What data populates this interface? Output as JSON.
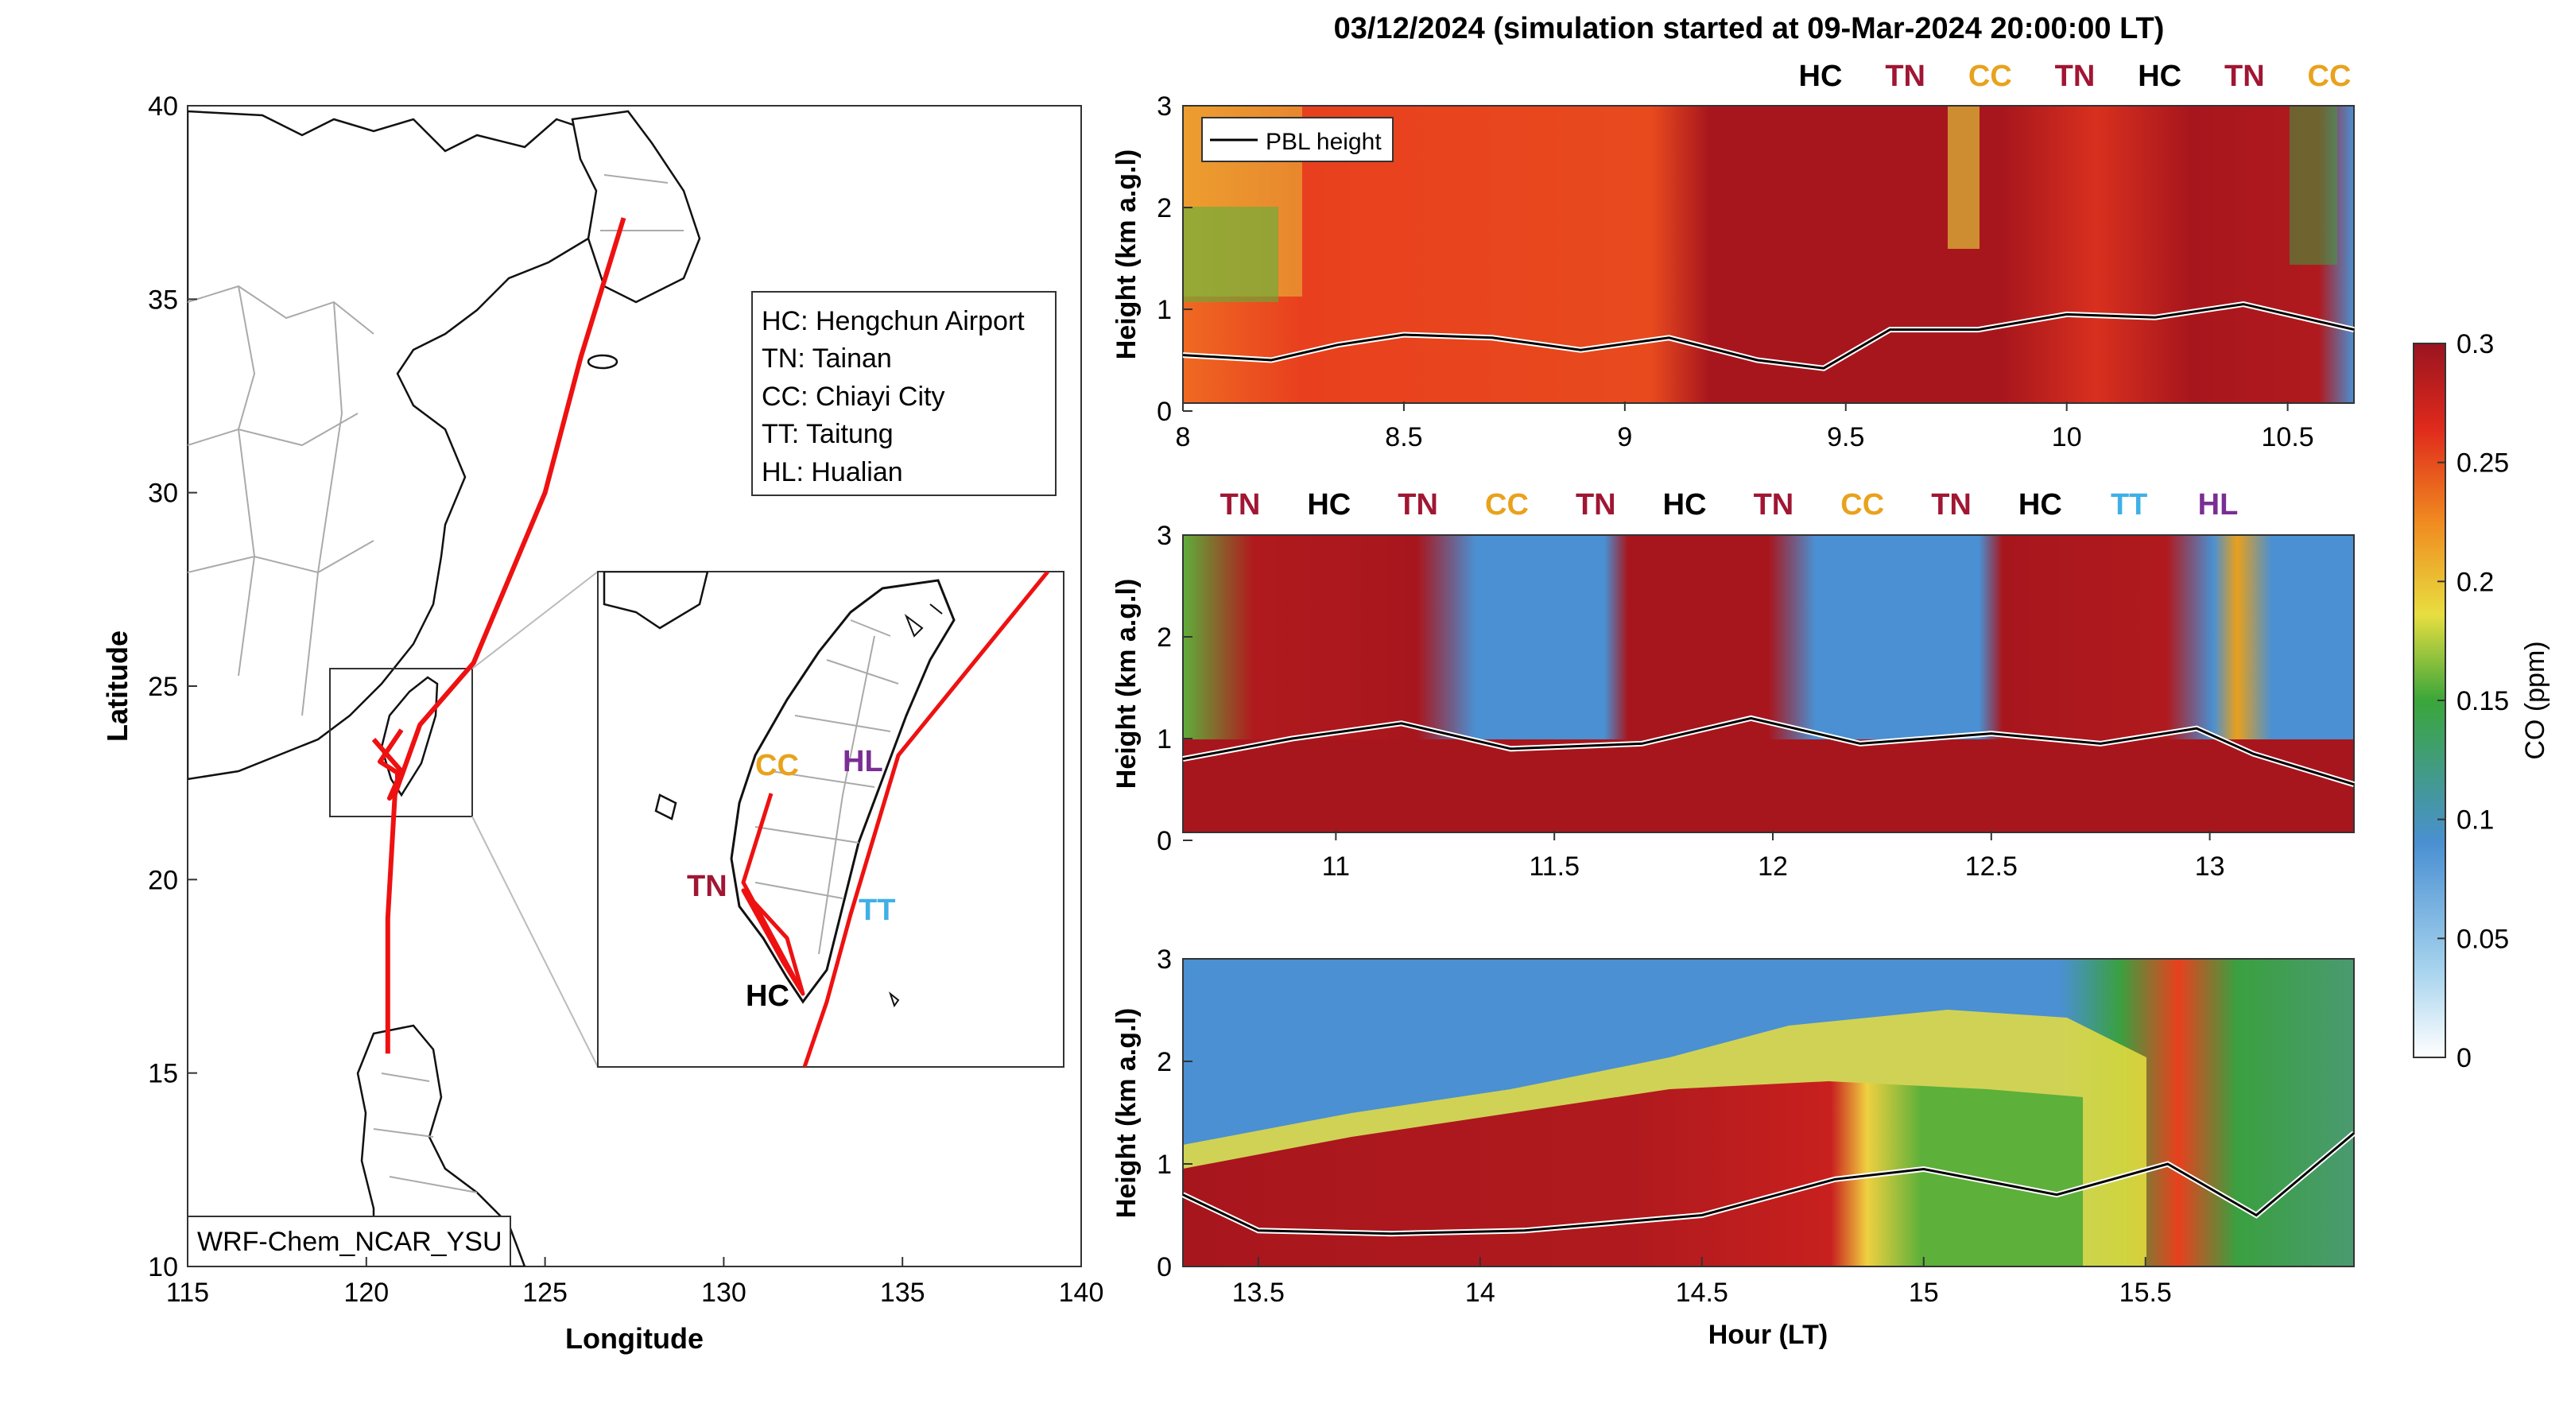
{
  "title": "03/12/2024 (simulation started at 09-Mar-2024 20:00:00 LT)",
  "colors": {
    "track": "#ee1111",
    "HC": "#000000",
    "TN": "#a01633",
    "CC": "#e8a21c",
    "TT": "#3fb0e6",
    "HL": "#7a2e94"
  },
  "map": {
    "xlabel": "Longitude",
    "ylabel": "Latitude",
    "xticks": [
      "115",
      "120",
      "125",
      "130",
      "135",
      "140"
    ],
    "yticks": [
      "10",
      "15",
      "20",
      "25",
      "30",
      "35",
      "40"
    ],
    "xlim": [
      115,
      140
    ],
    "ylim": [
      10,
      40
    ],
    "legend": [
      "HC: Hengchun Airport",
      "TN: Tainan",
      "CC: Chiayi City",
      "TT: Taitung",
      "HL: Hualian"
    ],
    "model_label": "WRF-Chem_NCAR_YSU",
    "inset_labels": {
      "CC": "CC",
      "HL": "HL",
      "TN": "TN",
      "TT": "TT",
      "HC": "HC"
    }
  },
  "chart_data": [
    {
      "type": "line",
      "name": "flight-track-map",
      "xlabel": "Longitude",
      "ylabel": "Latitude",
      "xlim": [
        115,
        140
      ],
      "ylim": [
        10,
        40
      ],
      "track": [
        [
          127.2,
          37.1
        ],
        [
          126.0,
          33.5
        ],
        [
          125.0,
          30.0
        ],
        [
          123.0,
          25.6
        ],
        [
          121.5,
          24.0
        ],
        [
          120.8,
          22.2
        ],
        [
          120.6,
          19.0
        ],
        [
          120.6,
          15.5
        ]
      ]
    },
    {
      "type": "heatmap",
      "name": "panel-1",
      "ylabel": "Height (km a.g.l)",
      "xlim": [
        8,
        10.65
      ],
      "ylim": [
        0,
        3
      ],
      "xticks": [
        "8",
        "8.5",
        "9",
        "9.5",
        "10",
        "10.5"
      ],
      "yticks": [
        "0",
        "1",
        "2",
        "3"
      ],
      "legend": "PBL height",
      "site_labels": [
        "HC",
        "TN",
        "CC",
        "TN",
        "HC",
        "TN",
        "CC"
      ],
      "pbl_height": [
        [
          8.0,
          0.55
        ],
        [
          8.2,
          0.5
        ],
        [
          8.35,
          0.65
        ],
        [
          8.5,
          0.75
        ],
        [
          8.7,
          0.72
        ],
        [
          8.9,
          0.6
        ],
        [
          9.1,
          0.72
        ],
        [
          9.3,
          0.5
        ],
        [
          9.45,
          0.42
        ],
        [
          9.6,
          0.8
        ],
        [
          9.8,
          0.8
        ],
        [
          10.0,
          0.95
        ],
        [
          10.2,
          0.92
        ],
        [
          10.4,
          1.05
        ],
        [
          10.65,
          0.8
        ]
      ]
    },
    {
      "type": "heatmap",
      "name": "panel-2",
      "ylabel": "Height (km a.g.l)",
      "xlim": [
        10.65,
        13.33
      ],
      "ylim": [
        0,
        3
      ],
      "xticks": [
        "11",
        "11.5",
        "12",
        "12.5",
        "13"
      ],
      "yticks": [
        "0",
        "1",
        "2",
        "3"
      ],
      "site_labels": [
        "TN",
        "HC",
        "TN",
        "CC",
        "TN",
        "HC",
        "TN",
        "CC",
        "TN",
        "HC",
        "TT",
        "HL"
      ],
      "pbl_height": [
        [
          10.65,
          0.8
        ],
        [
          10.9,
          1.0
        ],
        [
          11.15,
          1.15
        ],
        [
          11.4,
          0.9
        ],
        [
          11.7,
          0.95
        ],
        [
          11.95,
          1.2
        ],
        [
          12.2,
          0.95
        ],
        [
          12.5,
          1.05
        ],
        [
          12.75,
          0.95
        ],
        [
          12.97,
          1.1
        ],
        [
          13.1,
          0.85
        ],
        [
          13.33,
          0.55
        ]
      ]
    },
    {
      "type": "heatmap",
      "name": "panel-3",
      "ylabel": "Height (km a.g.l)",
      "xlabel": "Hour (LT)",
      "xlim": [
        13.33,
        15.97
      ],
      "ylim": [
        0,
        3
      ],
      "xticks": [
        "13.5",
        "14",
        "14.5",
        "15",
        "15.5"
      ],
      "yticks": [
        "0",
        "1",
        "2",
        "3"
      ],
      "pbl_height": [
        [
          13.33,
          0.7
        ],
        [
          13.5,
          0.35
        ],
        [
          13.8,
          0.32
        ],
        [
          14.1,
          0.35
        ],
        [
          14.5,
          0.5
        ],
        [
          14.8,
          0.85
        ],
        [
          15.0,
          0.95
        ],
        [
          15.3,
          0.7
        ],
        [
          15.55,
          1.0
        ],
        [
          15.75,
          0.5
        ],
        [
          15.97,
          1.3
        ]
      ]
    }
  ],
  "colorbar": {
    "label": "CO (ppm)",
    "ticks": [
      "0",
      "0.05",
      "0.1",
      "0.15",
      "0.2",
      "0.25",
      "0.3"
    ],
    "range": [
      0,
      0.3
    ]
  }
}
